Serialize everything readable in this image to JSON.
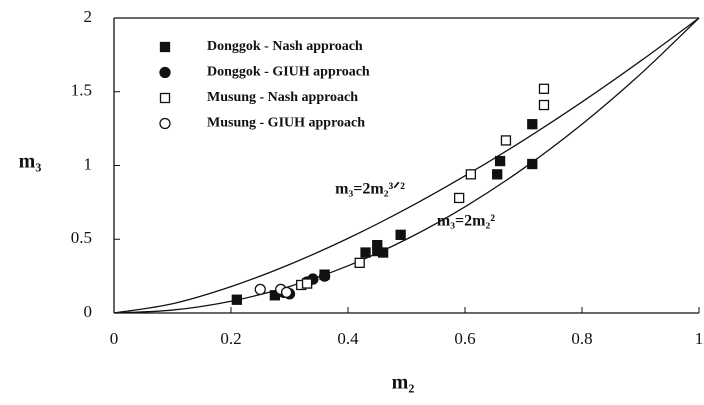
{
  "chart_data": {
    "type": "scatter",
    "x_label": "m₂",
    "y_label": "m₃",
    "xlim": [
      0,
      1
    ],
    "ylim": [
      0,
      2
    ],
    "xticks": [
      0,
      0.2,
      0.4,
      0.6,
      0.8,
      1
    ],
    "yticks": [
      0,
      0.5,
      1,
      1.5,
      2
    ],
    "legend": "top-left",
    "series": [
      {
        "name": "Donggok - Nash approach",
        "marker": "filled-square",
        "color": "#111111",
        "x": [
          0.21,
          0.275,
          0.33,
          0.36,
          0.43,
          0.45,
          0.45,
          0.46,
          0.49,
          0.655,
          0.66,
          0.715,
          0.715
        ],
        "values": [
          0.09,
          0.12,
          0.2,
          0.26,
          0.41,
          0.46,
          0.42,
          0.41,
          0.53,
          0.94,
          1.03,
          1.28,
          1.01
        ]
      },
      {
        "name": "Donggok - GIUH approach",
        "marker": "filled-circle",
        "color": "#111111",
        "x": [
          0.29,
          0.3,
          0.33,
          0.34,
          0.36
        ],
        "values": [
          0.14,
          0.13,
          0.21,
          0.23,
          0.25
        ]
      },
      {
        "name": "Musung - Nash approach",
        "marker": "open-square",
        "color": "#111111",
        "x": [
          0.32,
          0.33,
          0.42,
          0.59,
          0.61,
          0.67,
          0.735,
          0.735
        ],
        "values": [
          0.19,
          0.2,
          0.34,
          0.78,
          0.94,
          1.17,
          1.41,
          1.52
        ]
      },
      {
        "name": "Musung - GIUH approach",
        "marker": "open-circle",
        "color": "#111111",
        "x": [
          0.25,
          0.285,
          0.295
        ],
        "values": [
          0.16,
          0.16,
          0.14
        ]
      }
    ],
    "curves": [
      {
        "label": "m₃=2m₂³ᐟ²",
        "color": "#111111",
        "x": [
          0,
          0.1,
          0.2,
          0.3,
          0.4,
          0.5,
          0.6,
          0.7,
          0.8,
          0.9,
          1
        ],
        "values": [
          0,
          0.063,
          0.179,
          0.329,
          0.506,
          0.707,
          0.93,
          1.171,
          1.431,
          1.708,
          2
        ]
      },
      {
        "label": "m₃=2m₂²",
        "color": "#111111",
        "x": [
          0,
          0.1,
          0.2,
          0.3,
          0.4,
          0.5,
          0.6,
          0.7,
          0.8,
          0.9,
          1
        ],
        "values": [
          0,
          0.02,
          0.08,
          0.18,
          0.32,
          0.5,
          0.72,
          0.98,
          1.28,
          1.62,
          2
        ]
      }
    ]
  }
}
